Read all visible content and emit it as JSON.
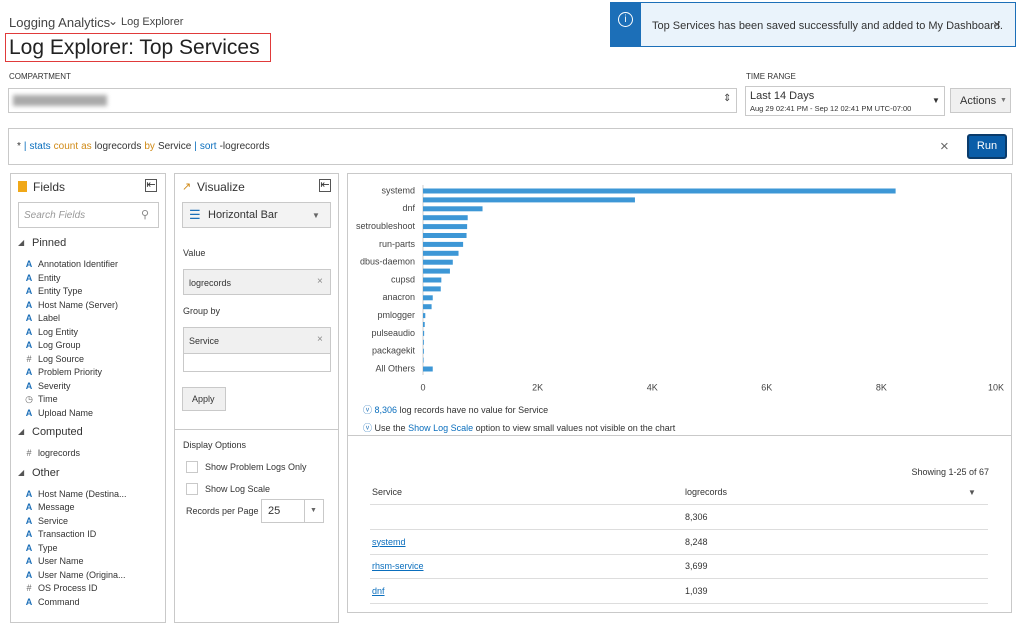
{
  "breadcrumb": {
    "root": "Logging Analytics",
    "current": "Log Explorer"
  },
  "header": {
    "title": "Log Explorer: Top Services"
  },
  "notification": {
    "message": "Top Services has been saved successfully and added to My Dashboard."
  },
  "compartment": {
    "label": "COMPARTMENT"
  },
  "time_range": {
    "label": "TIME RANGE",
    "value": "Last 14 Days",
    "detail": "Aug 29 02:41 PM - Sep 12 02:41 PM UTC-07:00"
  },
  "actions": "Actions",
  "query": {
    "tokens": [
      "*",
      "|",
      "stats",
      "count",
      "as",
      "logrecords",
      "by",
      "Service",
      "|",
      "sort",
      "-logrecords"
    ],
    "run": "Run"
  },
  "fields_panel": {
    "title": "Fields",
    "search_placeholder": "Search Fields",
    "groups": [
      {
        "name": "Pinned",
        "fields": [
          {
            "icon": "A",
            "name": "Annotation Identifier"
          },
          {
            "icon": "A",
            "name": "Entity"
          },
          {
            "icon": "A",
            "name": "Entity Type"
          },
          {
            "icon": "A",
            "name": "Host Name (Server)"
          },
          {
            "icon": "A",
            "name": "Label"
          },
          {
            "icon": "A",
            "name": "Log Entity"
          },
          {
            "icon": "A",
            "name": "Log Group"
          },
          {
            "icon": "#",
            "name": "Log Source"
          },
          {
            "icon": "A",
            "name": "Problem Priority"
          },
          {
            "icon": "A",
            "name": "Severity"
          },
          {
            "icon": "◷",
            "name": "Time"
          },
          {
            "icon": "A",
            "name": "Upload Name"
          }
        ]
      },
      {
        "name": "Computed",
        "fields": [
          {
            "icon": "#",
            "name": "logrecords"
          }
        ]
      },
      {
        "name": "Other",
        "fields": [
          {
            "icon": "A",
            "name": "Host Name (Destina..."
          },
          {
            "icon": "A",
            "name": "Message"
          },
          {
            "icon": "A",
            "name": "Service"
          },
          {
            "icon": "A",
            "name": "Transaction ID"
          },
          {
            "icon": "A",
            "name": "Type"
          },
          {
            "icon": "A",
            "name": "User Name"
          },
          {
            "icon": "A",
            "name": "User Name (Origina..."
          },
          {
            "icon": "#",
            "name": "OS Process ID"
          },
          {
            "icon": "A",
            "name": "Command"
          }
        ]
      }
    ]
  },
  "visualize_panel": {
    "title": "Visualize",
    "chart_type": "Horizontal Bar",
    "value_label": "Value",
    "value": "logrecords",
    "group_by_label": "Group by",
    "group_by": "Service",
    "apply": "Apply",
    "display_options": "Display Options",
    "options": [
      "Show Problem Logs Only",
      "Show Log Scale"
    ],
    "records_per_page_label": "Records per Page",
    "records_per_page": 25
  },
  "chart_data": {
    "type": "hbar",
    "color": "#3d97d6",
    "grid": false,
    "categories": [
      "systemd",
      null,
      "dnf",
      null,
      "setroubleshoot",
      null,
      "run-parts",
      null,
      "dbus-daemon",
      null,
      "cupsd",
      null,
      "anacron",
      null,
      "pmlogger",
      null,
      "pulseaudio",
      null,
      "packagekit",
      null,
      "All Others"
    ],
    "values": [
      8248,
      3699,
      1039,
      780,
      770,
      760,
      700,
      620,
      520,
      470,
      320,
      310,
      170,
      150,
      40,
      30,
      20,
      15,
      15,
      10,
      170
    ],
    "xlim": [
      0,
      10000
    ],
    "xticks": [
      0,
      {
        "value": 2000,
        "label": "2K"
      },
      {
        "value": 4000,
        "label": "4K"
      },
      {
        "value": 6000,
        "label": "6K"
      },
      {
        "value": 8000,
        "label": "8K"
      },
      {
        "value": 10000,
        "label": "10K"
      }
    ]
  },
  "notes": {
    "missing": {
      "count": "8,306",
      "text": "log records have no value for Service"
    },
    "log_scale": {
      "prefix": "Use the",
      "link": "Show Log Scale",
      "suffix": "option to view small values not visible on the chart"
    }
  },
  "table": {
    "summary": "Showing 1-25 of 67",
    "columns": [
      "Service",
      "logrecords"
    ],
    "rows": [
      [
        null,
        "8,306"
      ],
      [
        "systemd",
        "8,248"
      ],
      [
        "rhsm-service",
        "3,699"
      ],
      [
        "dnf",
        "1,039"
      ]
    ]
  }
}
